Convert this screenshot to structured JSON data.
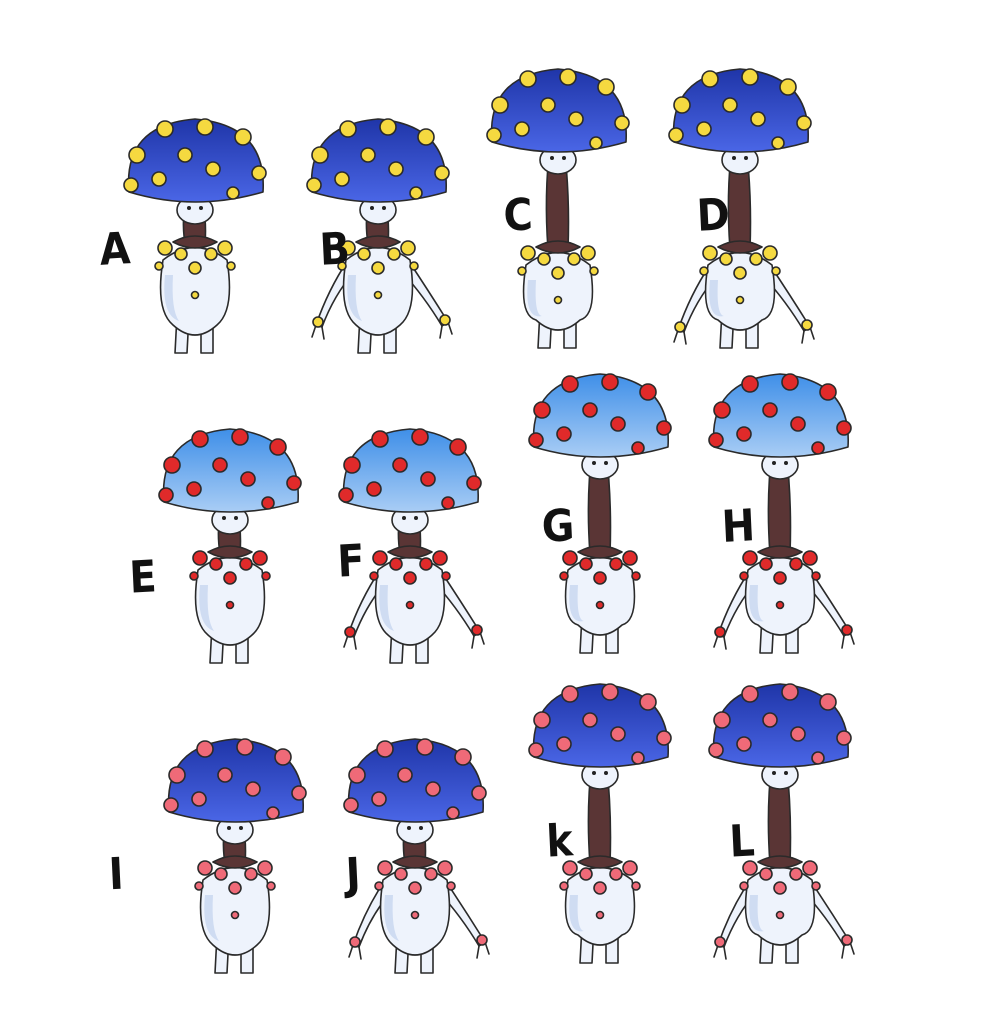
{
  "variants": [
    {
      "letter": "A",
      "cap": "dark-blue",
      "spot": "yellow",
      "neck": "short",
      "arms": false
    },
    {
      "letter": "B",
      "cap": "dark-blue",
      "spot": "yellow",
      "neck": "short",
      "arms": true
    },
    {
      "letter": "C",
      "cap": "dark-blue",
      "spot": "yellow",
      "neck": "long",
      "arms": false
    },
    {
      "letter": "D",
      "cap": "dark-blue",
      "spot": "yellow",
      "neck": "long",
      "arms": true
    },
    {
      "letter": "E",
      "cap": "light-blue",
      "spot": "red",
      "neck": "short",
      "arms": false
    },
    {
      "letter": "F",
      "cap": "light-blue",
      "spot": "red",
      "neck": "short",
      "arms": true
    },
    {
      "letter": "G",
      "cap": "light-blue",
      "spot": "red",
      "neck": "long",
      "arms": false
    },
    {
      "letter": "H",
      "cap": "light-blue",
      "spot": "red",
      "neck": "long",
      "arms": true
    },
    {
      "letter": "I",
      "cap": "dark-blue",
      "spot": "pink",
      "neck": "short",
      "arms": false
    },
    {
      "letter": "J",
      "cap": "dark-blue",
      "spot": "pink",
      "neck": "short",
      "arms": true
    },
    {
      "letter": "k",
      "cap": "dark-blue",
      "spot": "pink",
      "neck": "long",
      "arms": false
    },
    {
      "letter": "L",
      "cap": "dark-blue",
      "spot": "pink",
      "neck": "long",
      "arms": true
    }
  ],
  "palette": {
    "dark-blue": {
      "top": "#1f35a8",
      "bottom": "#4a66e6"
    },
    "light-blue": {
      "top": "#3f8fe8",
      "bottom": "#a9cdf5"
    },
    "yellow": "#f5d940",
    "red": "#e02a2a",
    "pink": "#ef6a78",
    "body": "#eef3fc",
    "body_shade": "#cfdcf2",
    "neck": "#5a3535"
  }
}
